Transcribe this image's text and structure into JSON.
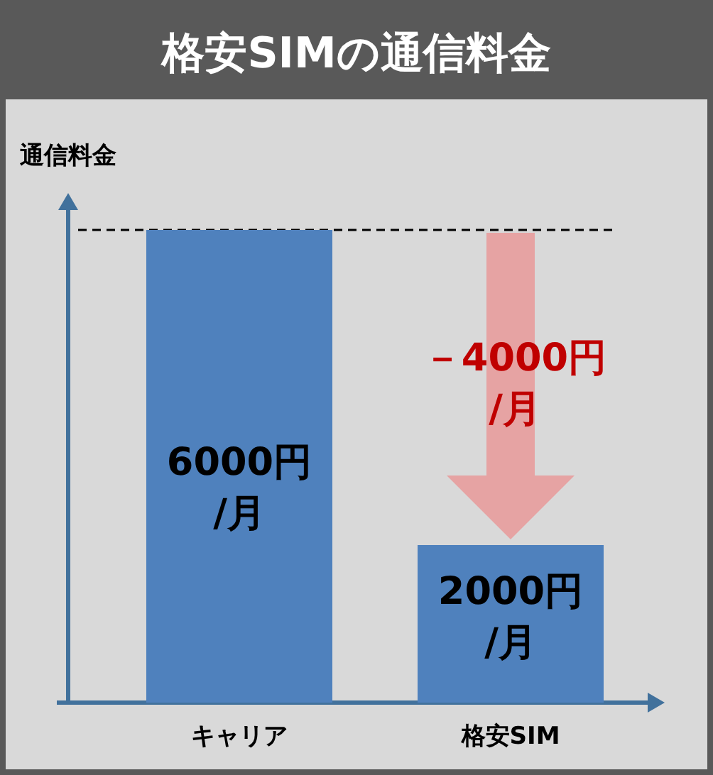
{
  "chart_data": {
    "type": "bar",
    "title": "格安SIMの通信料金",
    "ylabel": "通信料金",
    "categories": [
      "キャリア",
      "格安SIM"
    ],
    "values": [
      6000,
      2000
    ],
    "color": "#4f81bd",
    "value_labels": [
      "6000円\n/月",
      "2000円\n/月"
    ],
    "ref_lines": [
      {
        "axis": "y",
        "value": 6000,
        "color": "#000000",
        "line_style": "dashed"
      }
    ],
    "annotations": [
      "－4000円\n/月"
    ]
  }
}
